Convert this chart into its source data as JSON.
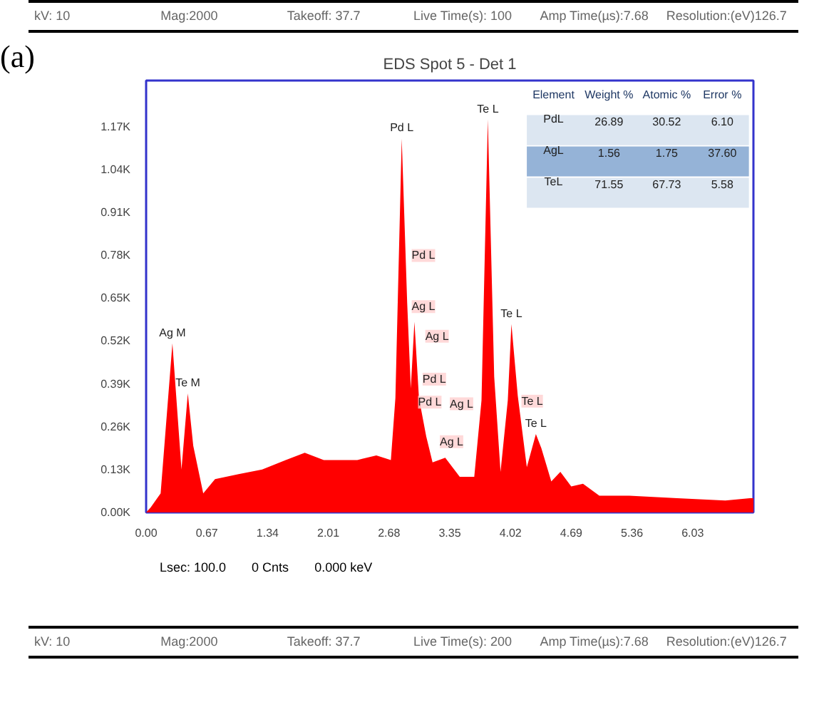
{
  "chart_data": {
    "type": "area",
    "title": "EDS Spot 5 - Det 1",
    "x": [
      0.0,
      0.05,
      0.16,
      0.29,
      0.39,
      0.46,
      0.52,
      0.63,
      0.76,
      1.02,
      1.28,
      1.54,
      1.75,
      1.96,
      2.33,
      2.54,
      2.7,
      2.75,
      2.82,
      2.88,
      2.92,
      2.96,
      3.01,
      3.09,
      3.16,
      3.3,
      3.46,
      3.62,
      3.7,
      3.77,
      3.84,
      3.91,
      3.99,
      4.03,
      4.1,
      4.2,
      4.3,
      4.36,
      4.47,
      4.57,
      4.69,
      4.82,
      5.0,
      5.33,
      5.86,
      6.39,
      6.66,
      6.7
    ],
    "series": [
      {
        "color": "#ff0000",
        "values": [
          0,
          15,
          58,
          513,
          130,
          361,
          202,
          58,
          101,
          116,
          130,
          159,
          181,
          159,
          159,
          173,
          159,
          347,
          1134,
          636,
          376,
          578,
          347,
          231,
          152,
          166,
          108,
          108,
          340,
          1192,
          412,
          123,
          340,
          571,
          354,
          137,
          238,
          195,
          94,
          123,
          79,
          87,
          51,
          51,
          43,
          36,
          43,
          43
        ]
      }
    ],
    "xlim": [
      0,
      6.7
    ],
    "ylim": [
      0,
      1310
    ],
    "xticks": [
      {
        "value": 0,
        "label": "0.00"
      },
      0.67,
      1.34,
      2.01,
      2.68,
      3.35,
      4.02,
      4.69,
      5.36,
      6.03
    ],
    "yticks": [
      {
        "value": 0,
        "label": "0.00K"
      },
      {
        "value": 130,
        "label": "0.13K"
      },
      {
        "value": 260,
        "label": "0.26K"
      },
      {
        "value": 390,
        "label": "0.39K"
      },
      {
        "value": 520,
        "label": "0.52K"
      },
      {
        "value": 650,
        "label": "0.65K"
      },
      {
        "value": 780,
        "label": "0.78K"
      },
      {
        "value": 910,
        "label": "0.91K"
      },
      {
        "value": 1040,
        "label": "1.04K"
      },
      {
        "value": 1170,
        "label": "1.17K"
      }
    ],
    "grid": false,
    "annotations": [
      "kV:  10",
      "Mag:2000",
      "Takeoff: 37.7",
      "Live Time(s): 100",
      "Amp Time(µs):7.68",
      "Resolution:(eV)126.7",
      "(a)",
      "Element",
      "Weight %",
      "Atomic %",
      "Error %",
      "PdL",
      "26.89",
      "30.52",
      "6.10",
      "AgL",
      "1.56",
      "1.75",
      "37.60",
      "TeL",
      "71.55",
      "67.73",
      "5.58",
      "Lsec: 100.0",
      "0 Cnts",
      "0.000 keV",
      "kV:  10",
      "Mag:2000",
      "Takeoff: 37.7",
      "Live Time(s): 200",
      "Amp Time(µs):7.68",
      "Resolution:(eV)126.7",
      "Pd L",
      "Ag L",
      "Ag L",
      "Pd L",
      "Pd L",
      "Ag L",
      "Ag L",
      "Te L",
      {
        "text": "Ag M",
        "x": 0.29,
        "y": 513
      },
      {
        "text": "Te M",
        "x": 0.46,
        "y": 361
      },
      {
        "text": "Pd L",
        "x": 2.82,
        "y": 1134
      },
      {
        "text": "Te L",
        "x": 3.77,
        "y": 1192
      },
      {
        "text": "Te L",
        "x": 4.03,
        "y": 571
      },
      {
        "text": "Te L",
        "x": 4.3,
        "y": 238
      }
    ]
  }
}
